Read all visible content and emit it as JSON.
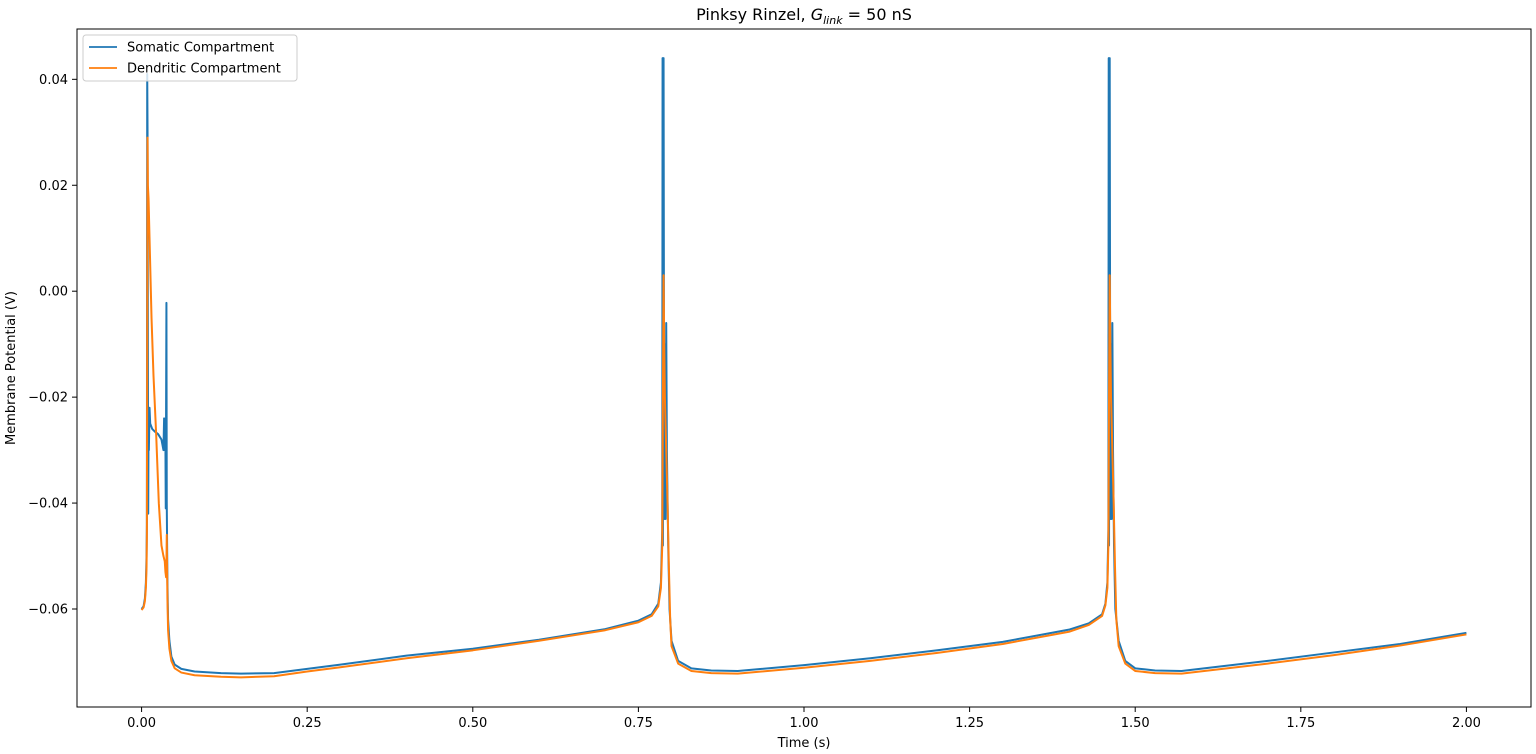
{
  "chart_data": {
    "type": "line",
    "title": {
      "prefix": "Pinksy Rinzel, ",
      "symbol": "G",
      "subscript": "link",
      "suffix": " = 50 nS"
    },
    "xlabel": "Time (s)",
    "ylabel": "Membrane Potential (V)",
    "xlim": [
      -0.0975,
      2.0975
    ],
    "ylim": [
      -0.0785,
      0.0495
    ],
    "x_ticks": [
      0.0,
      0.25,
      0.5,
      0.75,
      1.0,
      1.25,
      1.5,
      1.75,
      2.0
    ],
    "x_tick_labels": [
      "0.00",
      "0.25",
      "0.50",
      "0.75",
      "1.00",
      "1.25",
      "1.50",
      "1.75",
      "2.00"
    ],
    "y_ticks": [
      -0.06,
      -0.04,
      -0.02,
      0.0,
      0.02,
      0.04
    ],
    "y_tick_labels": [
      "−0.06",
      "−0.04",
      "−0.02",
      "0.00",
      "0.02",
      "0.04"
    ],
    "grid": false,
    "legend_position": "top-left",
    "series": [
      {
        "name": "Somatic Compartment",
        "color": "#1f77b4",
        "points": [
          [
            0.0,
            -0.06
          ],
          [
            0.003,
            -0.0595
          ],
          [
            0.005,
            -0.058
          ],
          [
            0.0065,
            -0.055
          ],
          [
            0.0075,
            -0.05
          ],
          [
            0.008,
            -0.044
          ],
          [
            0.0085,
            0.041
          ],
          [
            0.009,
            0.03
          ],
          [
            0.0095,
            -0.01
          ],
          [
            0.01,
            -0.042
          ],
          [
            0.0105,
            -0.025
          ],
          [
            0.011,
            -0.03
          ],
          [
            0.012,
            -0.022
          ],
          [
            0.013,
            -0.025
          ],
          [
            0.016,
            -0.026
          ],
          [
            0.02,
            -0.0265
          ],
          [
            0.025,
            -0.027
          ],
          [
            0.03,
            -0.028
          ],
          [
            0.033,
            -0.03
          ],
          [
            0.034,
            -0.024
          ],
          [
            0.035,
            -0.03
          ],
          [
            0.036,
            -0.029
          ],
          [
            0.0365,
            -0.041
          ],
          [
            0.0375,
            -0.0022
          ],
          [
            0.038,
            -0.04
          ],
          [
            0.039,
            -0.055
          ],
          [
            0.04,
            -0.062
          ],
          [
            0.042,
            -0.066
          ],
          [
            0.045,
            -0.069
          ],
          [
            0.05,
            -0.0705
          ],
          [
            0.06,
            -0.0713
          ],
          [
            0.08,
            -0.0718
          ],
          [
            0.12,
            -0.0721
          ],
          [
            0.15,
            -0.0722
          ],
          [
            0.2,
            -0.0721
          ],
          [
            0.25,
            -0.0713
          ],
          [
            0.3,
            -0.0705
          ],
          [
            0.4,
            -0.0688
          ],
          [
            0.5,
            -0.0675
          ],
          [
            0.6,
            -0.0658
          ],
          [
            0.7,
            -0.0638
          ],
          [
            0.75,
            -0.0622
          ],
          [
            0.77,
            -0.061
          ],
          [
            0.78,
            -0.059
          ],
          [
            0.784,
            -0.055
          ],
          [
            0.786,
            -0.045
          ],
          [
            0.7865,
            0.044
          ],
          [
            0.787,
            -0.048
          ],
          [
            0.788,
            0.044
          ],
          [
            0.789,
            -0.043
          ],
          [
            0.79,
            -0.01
          ],
          [
            0.791,
            -0.043
          ],
          [
            0.792,
            -0.006
          ],
          [
            0.793,
            -0.03
          ],
          [
            0.795,
            -0.048
          ],
          [
            0.797,
            -0.06
          ],
          [
            0.8,
            -0.066
          ],
          [
            0.81,
            -0.0698
          ],
          [
            0.83,
            -0.0712
          ],
          [
            0.86,
            -0.0716
          ],
          [
            0.9,
            -0.0717
          ],
          [
            1.0,
            -0.0706
          ],
          [
            1.1,
            -0.0693
          ],
          [
            1.2,
            -0.0678
          ],
          [
            1.3,
            -0.0662
          ],
          [
            1.4,
            -0.0639
          ],
          [
            1.43,
            -0.0627
          ],
          [
            1.45,
            -0.061
          ],
          [
            1.455,
            -0.059
          ],
          [
            1.458,
            -0.055
          ],
          [
            1.4595,
            -0.045
          ],
          [
            1.46,
            0.044
          ],
          [
            1.4605,
            -0.048
          ],
          [
            1.4615,
            0.044
          ],
          [
            1.4625,
            -0.043
          ],
          [
            1.4635,
            -0.01
          ],
          [
            1.4645,
            -0.043
          ],
          [
            1.4655,
            -0.006
          ],
          [
            1.4665,
            -0.03
          ],
          [
            1.468,
            -0.048
          ],
          [
            1.47,
            -0.06
          ],
          [
            1.475,
            -0.066
          ],
          [
            1.485,
            -0.0698
          ],
          [
            1.5,
            -0.0712
          ],
          [
            1.53,
            -0.0716
          ],
          [
            1.57,
            -0.0717
          ],
          [
            1.7,
            -0.0698
          ],
          [
            1.8,
            -0.0682
          ],
          [
            1.9,
            -0.0666
          ],
          [
            2.0,
            -0.0645
          ]
        ]
      },
      {
        "name": "Dendritic Compartment",
        "color": "#ff7f0e",
        "points": [
          [
            0.0,
            -0.0602
          ],
          [
            0.003,
            -0.0597
          ],
          [
            0.005,
            -0.0585
          ],
          [
            0.0065,
            -0.056
          ],
          [
            0.0075,
            -0.052
          ],
          [
            0.008,
            -0.046
          ],
          [
            0.009,
            0.029
          ],
          [
            0.0095,
            0.02
          ],
          [
            0.0105,
            0.0175
          ],
          [
            0.012,
            0.01
          ],
          [
            0.015,
            -0.005
          ],
          [
            0.018,
            -0.016
          ],
          [
            0.022,
            -0.027
          ],
          [
            0.026,
            -0.04
          ],
          [
            0.03,
            -0.048
          ],
          [
            0.033,
            -0.05
          ],
          [
            0.035,
            -0.051
          ],
          [
            0.036,
            -0.053
          ],
          [
            0.037,
            -0.054
          ],
          [
            0.0375,
            -0.052
          ],
          [
            0.038,
            -0.046
          ],
          [
            0.039,
            -0.058
          ],
          [
            0.04,
            -0.064
          ],
          [
            0.042,
            -0.0675
          ],
          [
            0.045,
            -0.0698
          ],
          [
            0.05,
            -0.0712
          ],
          [
            0.06,
            -0.072
          ],
          [
            0.08,
            -0.0725
          ],
          [
            0.12,
            -0.0728
          ],
          [
            0.15,
            -0.0729
          ],
          [
            0.2,
            -0.0727
          ],
          [
            0.25,
            -0.0718
          ],
          [
            0.3,
            -0.071
          ],
          [
            0.4,
            -0.0693
          ],
          [
            0.5,
            -0.0678
          ],
          [
            0.6,
            -0.066
          ],
          [
            0.7,
            -0.064
          ],
          [
            0.75,
            -0.0625
          ],
          [
            0.77,
            -0.0613
          ],
          [
            0.78,
            -0.0595
          ],
          [
            0.784,
            -0.056
          ],
          [
            0.786,
            -0.048
          ],
          [
            0.787,
            -0.02
          ],
          [
            0.788,
            0.003
          ],
          [
            0.789,
            -0.01
          ],
          [
            0.79,
            -0.02
          ],
          [
            0.792,
            -0.03
          ],
          [
            0.794,
            -0.04
          ],
          [
            0.796,
            -0.052
          ],
          [
            0.798,
            -0.062
          ],
          [
            0.8,
            -0.067
          ],
          [
            0.81,
            -0.0703
          ],
          [
            0.83,
            -0.0717
          ],
          [
            0.86,
            -0.0721
          ],
          [
            0.9,
            -0.0722
          ],
          [
            1.0,
            -0.0711
          ],
          [
            1.1,
            -0.0698
          ],
          [
            1.2,
            -0.0683
          ],
          [
            1.3,
            -0.0666
          ],
          [
            1.4,
            -0.0643
          ],
          [
            1.43,
            -0.063
          ],
          [
            1.45,
            -0.0613
          ],
          [
            1.455,
            -0.0593
          ],
          [
            1.458,
            -0.056
          ],
          [
            1.4595,
            -0.048
          ],
          [
            1.4605,
            -0.02
          ],
          [
            1.4615,
            0.003
          ],
          [
            1.4625,
            -0.01
          ],
          [
            1.4635,
            -0.02
          ],
          [
            1.4655,
            -0.03
          ],
          [
            1.4675,
            -0.04
          ],
          [
            1.4695,
            -0.052
          ],
          [
            1.4715,
            -0.062
          ],
          [
            1.475,
            -0.067
          ],
          [
            1.485,
            -0.0703
          ],
          [
            1.5,
            -0.0717
          ],
          [
            1.53,
            -0.0721
          ],
          [
            1.57,
            -0.0722
          ],
          [
            1.7,
            -0.0703
          ],
          [
            1.8,
            -0.0687
          ],
          [
            1.9,
            -0.0669
          ],
          [
            2.0,
            -0.0648
          ]
        ]
      }
    ]
  }
}
